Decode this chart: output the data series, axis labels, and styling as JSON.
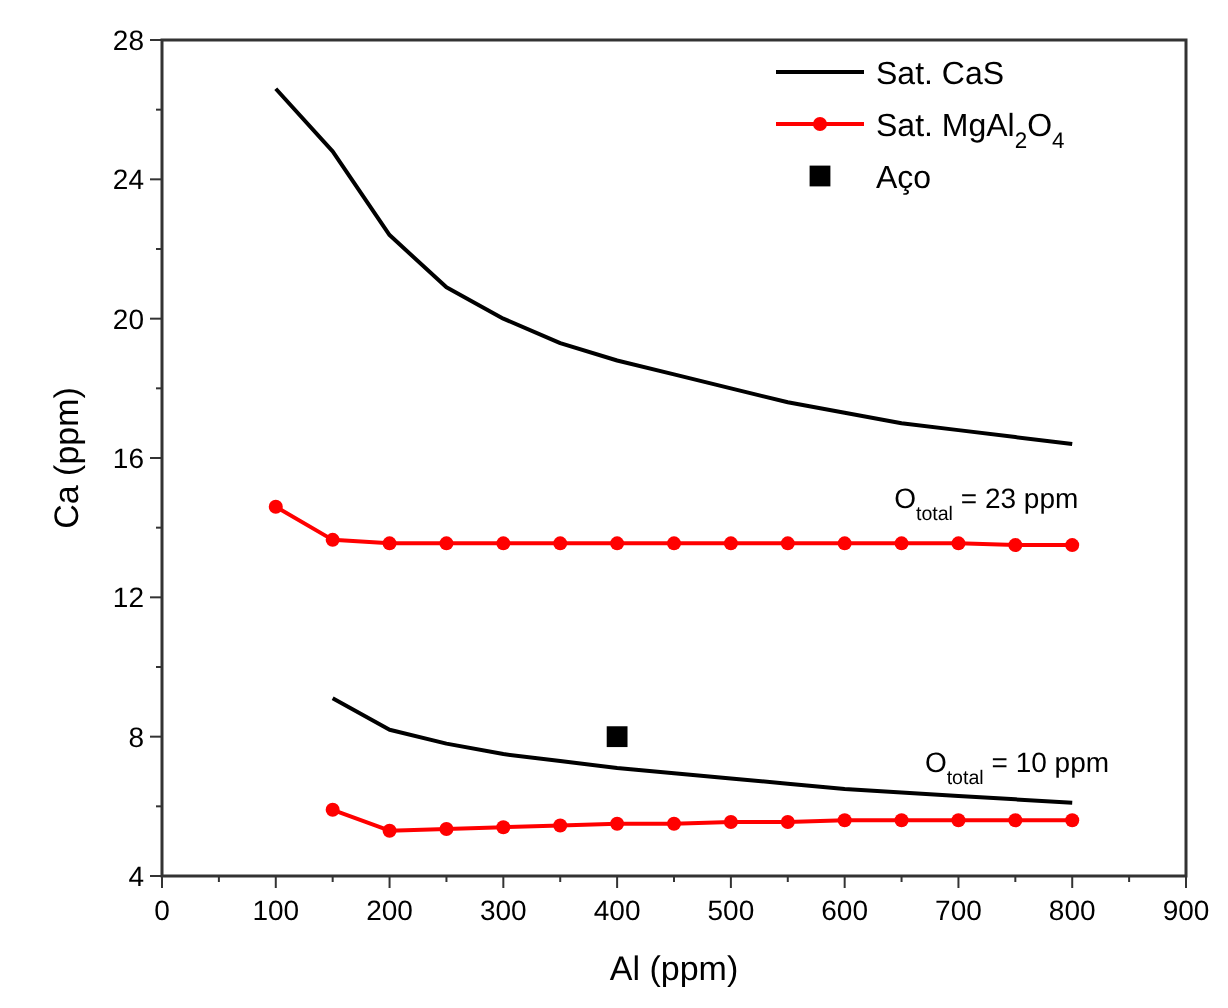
{
  "chart_data": {
    "type": "line",
    "xlabel": "Al (ppm)",
    "ylabel": "Ca (ppm)",
    "xlim": [
      0,
      900
    ],
    "ylim": [
      4,
      28
    ],
    "xticks": [
      0,
      100,
      200,
      300,
      400,
      500,
      600,
      700,
      800,
      900
    ],
    "yticks": [
      4,
      8,
      12,
      16,
      20,
      24,
      28
    ],
    "grid": false,
    "legend": "top right",
    "line_style": "solid",
    "series": [
      {
        "name": "Sat. CaS",
        "color": "#000000",
        "marker": "none",
        "x": [
          100,
          150,
          200,
          250,
          300,
          350,
          400,
          450,
          500,
          550,
          600,
          650,
          700,
          750,
          800
        ],
        "values": [
          26.6,
          24.8,
          22.4,
          20.9,
          20.0,
          19.3,
          18.8,
          18.4,
          18.0,
          17.6,
          17.3,
          17.0,
          16.8,
          16.6,
          16.4
        ]
      },
      {
        "name": "Sat. MgAl$_{2}$O$_{4}$",
        "color": "#ff0000",
        "marker": "circle",
        "x": [
          100,
          150,
          200,
          250,
          300,
          350,
          400,
          450,
          500,
          550,
          600,
          650,
          700,
          750,
          800
        ],
        "values": [
          14.6,
          13.65,
          13.55,
          13.55,
          13.55,
          13.55,
          13.55,
          13.55,
          13.55,
          13.55,
          13.55,
          13.55,
          13.55,
          13.5,
          13.5
        ]
      },
      {
        "name": "Aço",
        "type": "scatter",
        "color": "#000000",
        "marker": "square",
        "x": [
          400
        ],
        "values": [
          8.0
        ]
      },
      {
        "color": "#000000",
        "marker": "none",
        "x": [
          150,
          200,
          250,
          300,
          350,
          400,
          450,
          500,
          550,
          600,
          650,
          700,
          750,
          800
        ],
        "values": [
          9.1,
          8.2,
          7.8,
          7.5,
          7.3,
          7.1,
          6.95,
          6.8,
          6.65,
          6.5,
          6.4,
          6.3,
          6.2,
          6.1
        ]
      },
      {
        "color": "#ff0000",
        "marker": "circle",
        "x": [
          150,
          200,
          250,
          300,
          350,
          400,
          450,
          500,
          550,
          600,
          650,
          700,
          750,
          800
        ],
        "values": [
          5.9,
          5.3,
          5.35,
          5.4,
          5.45,
          5.5,
          5.5,
          5.55,
          5.55,
          5.6,
          5.6,
          5.6,
          5.6,
          5.6
        ]
      }
    ],
    "annotations": [
      "O$_{total}$ = 23 ppm",
      "O$_{total}$ = 10 ppm"
    ]
  }
}
